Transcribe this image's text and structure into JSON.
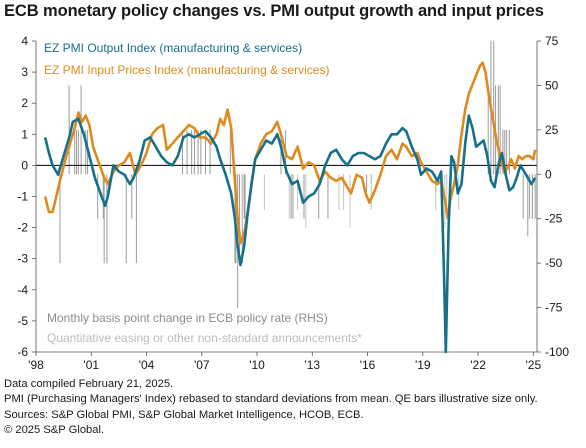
{
  "title": "ECB monetary policy changes vs. PMI output growth and input prices",
  "legend": {
    "output": "EZ PMI Output Index (manufacturing & services)",
    "input": "EZ PMI Input Prices Index (manufacturing & services)",
    "policy": "Monthly basis point change in ECB policy rate (RHS)",
    "qe": "Quantitative easing or other non-standard announcements*"
  },
  "colors": {
    "output": "#16708a",
    "input": "#e08a1e",
    "policy_bars": "#9a9a9a",
    "qe_bars": "#c4c4c4",
    "policy_text": "#8c8c8c",
    "qe_text": "#bcbcbc",
    "zero_line": "#000000",
    "axis": "#555555"
  },
  "notes": [
    "Data compiled February 21, 2025.",
    "PMI (Purchasing Managers' Index) rebased to standard deviations from mean. QE bars illustrative size only.",
    "Sources: S&P Global PMI, S&P Global Market Intelligence, HCOB, ECB.",
    "© 2025 S&P Global."
  ],
  "chart_data": {
    "type": "line",
    "title": "ECB monetary policy changes vs. PMI output growth and input prices",
    "x_range": [
      1998.0,
      2025.2
    ],
    "x_ticks": [
      "'98",
      "'01",
      "'04",
      "'07",
      "'10",
      "'13",
      "'16",
      "'19",
      "'22",
      "'25"
    ],
    "y_left": {
      "range": [
        -6,
        4
      ],
      "ticks": [
        "4",
        "3",
        "2",
        "1",
        "0",
        "-1",
        "-2",
        "-3",
        "-4",
        "-5",
        "-6"
      ]
    },
    "y_right": {
      "label": "Monthly basis point change in ECB policy rate (RHS)",
      "range": [
        -100,
        75
      ],
      "ticks": [
        "75",
        "50",
        "25",
        "0",
        "-25",
        "-50",
        "-75",
        "-100"
      ]
    },
    "series": [
      {
        "name": "EZ PMI Output Index (manufacturing & services)",
        "axis": "left",
        "points": [
          [
            1998.5,
            0.9
          ],
          [
            1998.7,
            0.4
          ],
          [
            1998.9,
            0.0
          ],
          [
            1999.2,
            -0.3
          ],
          [
            1999.5,
            0.3
          ],
          [
            1999.8,
            0.9
          ],
          [
            2000.0,
            1.4
          ],
          [
            2000.3,
            1.5
          ],
          [
            2000.6,
            1.0
          ],
          [
            2000.9,
            0.3
          ],
          [
            2001.2,
            -0.4
          ],
          [
            2001.5,
            -0.9
          ],
          [
            2001.75,
            -1.3
          ],
          [
            2001.9,
            -1.0
          ],
          [
            2002.2,
            0.0
          ],
          [
            2002.5,
            -0.2
          ],
          [
            2002.8,
            -0.3
          ],
          [
            2003.1,
            -0.6
          ],
          [
            2003.3,
            -0.4
          ],
          [
            2003.6,
            0.1
          ],
          [
            2003.9,
            0.8
          ],
          [
            2004.2,
            0.9
          ],
          [
            2004.5,
            0.6
          ],
          [
            2004.8,
            0.3
          ],
          [
            2005.1,
            0.1
          ],
          [
            2005.4,
            0.0
          ],
          [
            2005.7,
            0.3
          ],
          [
            2006.0,
            0.9
          ],
          [
            2006.3,
            1.0
          ],
          [
            2006.6,
            0.9
          ],
          [
            2006.9,
            1.0
          ],
          [
            2007.2,
            1.1
          ],
          [
            2007.5,
            0.9
          ],
          [
            2007.8,
            0.6
          ],
          [
            2008.0,
            0.2
          ],
          [
            2008.3,
            -0.3
          ],
          [
            2008.6,
            -0.9
          ],
          [
            2008.8,
            -1.7
          ],
          [
            2008.95,
            -2.6
          ],
          [
            2009.1,
            -3.2
          ],
          [
            2009.3,
            -2.6
          ],
          [
            2009.5,
            -1.5
          ],
          [
            2009.7,
            -0.6
          ],
          [
            2009.9,
            0.2
          ],
          [
            2010.2,
            0.5
          ],
          [
            2010.5,
            0.8
          ],
          [
            2010.8,
            0.7
          ],
          [
            2011.1,
            1.0
          ],
          [
            2011.3,
            0.6
          ],
          [
            2011.6,
            -0.2
          ],
          [
            2011.9,
            -0.6
          ],
          [
            2012.2,
            -0.5
          ],
          [
            2012.5,
            -1.2
          ],
          [
            2012.8,
            -1.0
          ],
          [
            2013.1,
            -0.9
          ],
          [
            2013.4,
            -0.6
          ],
          [
            2013.7,
            0.0
          ],
          [
            2014.0,
            0.4
          ],
          [
            2014.3,
            0.5
          ],
          [
            2014.6,
            0.2
          ],
          [
            2014.9,
            0.0
          ],
          [
            2015.2,
            0.3
          ],
          [
            2015.5,
            0.4
          ],
          [
            2015.8,
            0.4
          ],
          [
            2016.1,
            0.3
          ],
          [
            2016.4,
            0.2
          ],
          [
            2016.7,
            0.3
          ],
          [
            2017.0,
            0.7
          ],
          [
            2017.3,
            1.0
          ],
          [
            2017.6,
            1.0
          ],
          [
            2017.9,
            1.2
          ],
          [
            2018.1,
            1.1
          ],
          [
            2018.4,
            0.6
          ],
          [
            2018.7,
            0.2
          ],
          [
            2018.9,
            -0.3
          ],
          [
            2019.2,
            -0.1
          ],
          [
            2019.5,
            -0.2
          ],
          [
            2019.8,
            -0.5
          ],
          [
            2020.0,
            -0.2
          ],
          [
            2020.15,
            -3.5
          ],
          [
            2020.25,
            -6.0
          ],
          [
            2020.4,
            -2.0
          ],
          [
            2020.55,
            0.3
          ],
          [
            2020.7,
            0.1
          ],
          [
            2020.9,
            -0.9
          ],
          [
            2021.1,
            -0.6
          ],
          [
            2021.3,
            0.7
          ],
          [
            2021.5,
            1.6
          ],
          [
            2021.7,
            1.2
          ],
          [
            2021.9,
            0.6
          ],
          [
            2022.1,
            0.7
          ],
          [
            2022.3,
            0.8
          ],
          [
            2022.5,
            0.3
          ],
          [
            2022.7,
            -0.5
          ],
          [
            2022.9,
            -0.7
          ],
          [
            2023.1,
            0.0
          ],
          [
            2023.3,
            0.4
          ],
          [
            2023.5,
            -0.3
          ],
          [
            2023.7,
            -0.8
          ],
          [
            2023.9,
            -0.7
          ],
          [
            2024.1,
            -0.4
          ],
          [
            2024.3,
            0.0
          ],
          [
            2024.5,
            -0.2
          ],
          [
            2024.7,
            -0.4
          ],
          [
            2024.9,
            -0.6
          ],
          [
            2025.1,
            -0.4
          ]
        ]
      },
      {
        "name": "EZ PMI Input Prices Index (manufacturing & services)",
        "axis": "left",
        "points": [
          [
            1998.5,
            -1.0
          ],
          [
            1998.7,
            -1.5
          ],
          [
            1998.9,
            -1.5
          ],
          [
            1999.1,
            -1.0
          ],
          [
            1999.3,
            -0.5
          ],
          [
            1999.6,
            0.2
          ],
          [
            1999.9,
            0.8
          ],
          [
            2000.1,
            1.2
          ],
          [
            2000.3,
            1.7
          ],
          [
            2000.5,
            1.4
          ],
          [
            2000.7,
            1.6
          ],
          [
            2000.9,
            1.3
          ],
          [
            2001.1,
            0.6
          ],
          [
            2001.4,
            0.1
          ],
          [
            2001.7,
            -0.4
          ],
          [
            2001.9,
            -0.6
          ],
          [
            2002.2,
            -0.2
          ],
          [
            2002.5,
            0.0
          ],
          [
            2002.8,
            0.1
          ],
          [
            2003.1,
            0.4
          ],
          [
            2003.4,
            -0.3
          ],
          [
            2003.7,
            0.0
          ],
          [
            2004.0,
            0.4
          ],
          [
            2004.3,
            1.0
          ],
          [
            2004.6,
            1.2
          ],
          [
            2004.9,
            1.3
          ],
          [
            2005.1,
            0.5
          ],
          [
            2005.4,
            0.7
          ],
          [
            2005.7,
            0.9
          ],
          [
            2006.0,
            1.1
          ],
          [
            2006.3,
            1.3
          ],
          [
            2006.6,
            1.2
          ],
          [
            2006.9,
            0.9
          ],
          [
            2007.2,
            0.9
          ],
          [
            2007.5,
            0.7
          ],
          [
            2007.8,
            1.0
          ],
          [
            2008.0,
            1.5
          ],
          [
            2008.2,
            1.3
          ],
          [
            2008.4,
            1.8
          ],
          [
            2008.6,
            1.2
          ],
          [
            2008.8,
            -0.5
          ],
          [
            2008.95,
            -1.7
          ],
          [
            2009.1,
            -2.5
          ],
          [
            2009.3,
            -2.2
          ],
          [
            2009.5,
            -1.5
          ],
          [
            2009.7,
            -0.6
          ],
          [
            2009.9,
            0.2
          ],
          [
            2010.2,
            0.7
          ],
          [
            2010.5,
            1.0
          ],
          [
            2010.8,
            1.1
          ],
          [
            2011.1,
            1.4
          ],
          [
            2011.3,
            1.0
          ],
          [
            2011.6,
            0.3
          ],
          [
            2011.9,
            0.2
          ],
          [
            2012.2,
            0.6
          ],
          [
            2012.5,
            -0.1
          ],
          [
            2012.8,
            0.1
          ],
          [
            2013.1,
            0.0
          ],
          [
            2013.4,
            -0.5
          ],
          [
            2013.7,
            -0.2
          ],
          [
            2014.0,
            -0.4
          ],
          [
            2014.3,
            -0.5
          ],
          [
            2014.6,
            -0.4
          ],
          [
            2014.9,
            -0.7
          ],
          [
            2015.1,
            -0.9
          ],
          [
            2015.4,
            -0.3
          ],
          [
            2015.7,
            -0.4
          ],
          [
            2015.9,
            -0.9
          ],
          [
            2016.1,
            -1.2
          ],
          [
            2016.4,
            -0.8
          ],
          [
            2016.7,
            -0.3
          ],
          [
            2017.0,
            0.3
          ],
          [
            2017.3,
            0.5
          ],
          [
            2017.6,
            0.2
          ],
          [
            2017.9,
            0.7
          ],
          [
            2018.1,
            0.6
          ],
          [
            2018.4,
            0.3
          ],
          [
            2018.7,
            0.4
          ],
          [
            2018.9,
            0.1
          ],
          [
            2019.2,
            -0.2
          ],
          [
            2019.5,
            -0.5
          ],
          [
            2019.8,
            -0.6
          ],
          [
            2020.0,
            -0.5
          ],
          [
            2020.2,
            -1.1
          ],
          [
            2020.35,
            -1.7
          ],
          [
            2020.5,
            -1.1
          ],
          [
            2020.7,
            -0.6
          ],
          [
            2020.9,
            0.0
          ],
          [
            2021.1,
            1.0
          ],
          [
            2021.3,
            1.8
          ],
          [
            2021.5,
            2.3
          ],
          [
            2021.7,
            2.6
          ],
          [
            2021.9,
            2.9
          ],
          [
            2022.1,
            3.2
          ],
          [
            2022.25,
            3.3
          ],
          [
            2022.4,
            3.0
          ],
          [
            2022.6,
            2.2
          ],
          [
            2022.8,
            1.5
          ],
          [
            2023.0,
            0.8
          ],
          [
            2023.2,
            0.3
          ],
          [
            2023.4,
            -0.2
          ],
          [
            2023.6,
            -0.1
          ],
          [
            2023.8,
            0.2
          ],
          [
            2024.0,
            -0.1
          ],
          [
            2024.2,
            0.3
          ],
          [
            2024.4,
            0.2
          ],
          [
            2024.6,
            0.3
          ],
          [
            2024.8,
            0.3
          ],
          [
            2025.0,
            0.2
          ],
          [
            2025.1,
            0.5
          ]
        ]
      }
    ],
    "policy_rate_changes_bp": [
      [
        1999.3,
        -50
      ],
      [
        1999.8,
        50
      ],
      [
        2000.1,
        25
      ],
      [
        2000.2,
        25
      ],
      [
        2000.3,
        25
      ],
      [
        2000.45,
        50
      ],
      [
        2000.7,
        25
      ],
      [
        2000.8,
        25
      ],
      [
        2001.35,
        -25
      ],
      [
        2001.65,
        -25
      ],
      [
        2001.7,
        -50
      ],
      [
        2001.85,
        -50
      ],
      [
        2002.9,
        -50
      ],
      [
        2003.2,
        -25
      ],
      [
        2003.45,
        -50
      ],
      [
        2005.95,
        25
      ],
      [
        2006.2,
        25
      ],
      [
        2006.45,
        25
      ],
      [
        2006.6,
        25
      ],
      [
        2006.8,
        25
      ],
      [
        2006.95,
        25
      ],
      [
        2007.2,
        25
      ],
      [
        2007.45,
        25
      ],
      [
        2008.55,
        25
      ],
      [
        2008.8,
        -50
      ],
      [
        2008.85,
        -50
      ],
      [
        2008.95,
        -75
      ],
      [
        2009.05,
        -50
      ],
      [
        2009.2,
        -50
      ],
      [
        2009.3,
        -25
      ],
      [
        2009.35,
        -25
      ],
      [
        2011.3,
        25
      ],
      [
        2011.55,
        25
      ],
      [
        2011.85,
        -25
      ],
      [
        2011.95,
        -25
      ],
      [
        2012.55,
        -25
      ],
      [
        2013.35,
        -25
      ],
      [
        2013.85,
        -25
      ],
      [
        2014.45,
        -10
      ],
      [
        2014.7,
        -10
      ],
      [
        2015.95,
        -10
      ],
      [
        2016.2,
        -5
      ],
      [
        2019.7,
        -10
      ],
      [
        2022.55,
        50
      ],
      [
        2022.7,
        75
      ],
      [
        2022.85,
        75
      ],
      [
        2022.95,
        50
      ],
      [
        2023.1,
        50
      ],
      [
        2023.2,
        50
      ],
      [
        2023.35,
        25
      ],
      [
        2023.45,
        25
      ],
      [
        2023.55,
        25
      ],
      [
        2023.7,
        25
      ],
      [
        2024.45,
        -25
      ],
      [
        2024.7,
        -35
      ],
      [
        2024.8,
        -25
      ],
      [
        2024.95,
        -25
      ],
      [
        2025.1,
        -25
      ]
    ],
    "qe_announcements": [
      [
        2009.2,
        -30
      ],
      [
        2010.4,
        -20
      ],
      [
        2011.75,
        -25
      ],
      [
        2012.2,
        -20
      ],
      [
        2012.65,
        -30
      ],
      [
        2014.45,
        -20
      ],
      [
        2014.7,
        -20
      ],
      [
        2015.05,
        -30
      ],
      [
        2016.2,
        -20
      ],
      [
        2019.7,
        -20
      ],
      [
        2020.2,
        -30
      ],
      [
        2020.3,
        -20
      ],
      [
        2020.95,
        -20
      ]
    ],
    "grid": false,
    "legend_position": "top-left"
  }
}
